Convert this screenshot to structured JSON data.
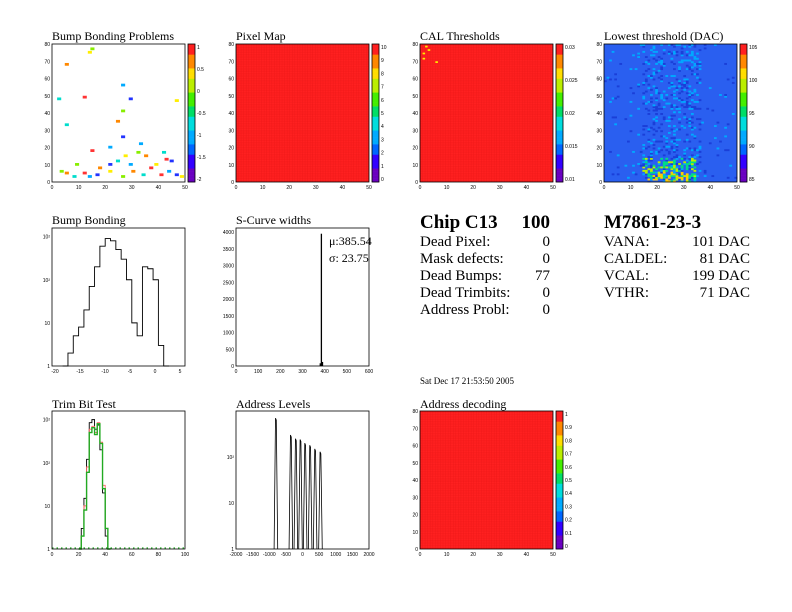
{
  "panels": {
    "bump_problems": {
      "title": "Bump Bonding Problems",
      "xticks": [
        "0",
        "10",
        "20",
        "30",
        "40",
        "50"
      ],
      "yticks": [
        "0",
        "10",
        "20",
        "30",
        "40",
        "50",
        "60",
        "70",
        "80"
      ],
      "zticks": [
        "1",
        "0.5",
        "0",
        "-0.5",
        "-1",
        "-1.5",
        "-2"
      ]
    },
    "pixel_map": {
      "title": "Pixel Map",
      "xticks": [
        "0",
        "10",
        "20",
        "30",
        "40",
        "50"
      ],
      "yticks": [
        "0",
        "10",
        "20",
        "30",
        "40",
        "50",
        "60",
        "70",
        "80"
      ],
      "zticks": [
        "10",
        "9",
        "8",
        "7",
        "6",
        "5",
        "4",
        "3",
        "2",
        "1",
        "0"
      ]
    },
    "cal_thresholds": {
      "title": "CAL Thresholds",
      "xticks": [
        "0",
        "10",
        "20",
        "30",
        "40",
        "50"
      ],
      "yticks": [
        "0",
        "10",
        "20",
        "30",
        "40",
        "50",
        "60",
        "70",
        "80"
      ],
      "zticks": [
        "0.03",
        "0.025",
        "0.02",
        "0.015",
        "0.01"
      ]
    },
    "lowest_threshold": {
      "title": "Lowest threshold (DAC)",
      "xticks": [
        "0",
        "10",
        "20",
        "30",
        "40",
        "50"
      ],
      "yticks": [
        "0",
        "10",
        "20",
        "30",
        "40",
        "50",
        "60",
        "70",
        "80"
      ],
      "zticks": [
        "105",
        "100",
        "95",
        "90",
        "85"
      ]
    },
    "bump_bonding": {
      "title": "Bump Bonding",
      "xticks": [
        "-20",
        "-15",
        "-10",
        "-5",
        "0",
        "5"
      ],
      "yticks": [
        "10²",
        "10²",
        "10",
        "1"
      ]
    },
    "scurve_widths": {
      "title": "S-Curve widths",
      "xticks": [
        "0",
        "100",
        "200",
        "300",
        "400",
        "500",
        "600"
      ],
      "yticks": [
        "4000",
        "3500",
        "3000",
        "2500",
        "2000",
        "1500",
        "1000",
        "500",
        "0"
      ],
      "mu": "μ:385.54",
      "sigma": "σ: 23.75"
    },
    "trim_bit_test": {
      "title": "Trim Bit Test",
      "xticks": [
        "0",
        "20",
        "40",
        "60",
        "80",
        "100"
      ],
      "yticks": [
        "10²",
        "10²",
        "10",
        "1"
      ]
    },
    "address_levels": {
      "title": "Address Levels",
      "xticks": [
        "-2000",
        "-1500",
        "-1000",
        "-500",
        "0",
        "500",
        "1000",
        "1500",
        "2000"
      ],
      "yticks": [
        "10²",
        "10",
        "1"
      ]
    },
    "address_decoding": {
      "title": "Address decoding",
      "xticks": [
        "0",
        "10",
        "20",
        "30",
        "40",
        "50"
      ],
      "yticks": [
        "0",
        "10",
        "20",
        "30",
        "40",
        "50",
        "60",
        "70",
        "80"
      ],
      "zticks": [
        "1",
        "0.9",
        "0.8",
        "0.7",
        "0.6",
        "0.5",
        "0.4",
        "0.3",
        "0.2",
        "0.1",
        "0"
      ]
    }
  },
  "chip": {
    "name": "Chip C13",
    "score": "100",
    "rows": [
      {
        "label": "Dead Pixel:",
        "value": "0"
      },
      {
        "label": "Mask defects:",
        "value": "0"
      },
      {
        "label": "Dead Bumps:",
        "value": "77"
      },
      {
        "label": "Dead Trimbits:",
        "value": "0"
      },
      {
        "label": "Address Probl:",
        "value": "0"
      }
    ]
  },
  "module": {
    "name": "M7861-23-3",
    "rows": [
      {
        "label": "VANA:",
        "value": "101 DAC"
      },
      {
        "label": "CALDEL:",
        "value": "81 DAC"
      },
      {
        "label": "VCAL:",
        "value": "199 DAC"
      },
      {
        "label": "VTHR:",
        "value": "71 DAC"
      }
    ]
  },
  "timestamp": "Sat Dec 17 21:53:50 2005",
  "colors": {
    "red": "#ff2020",
    "blue": "#2255ee",
    "histo": "#000000",
    "green": "#22aa22",
    "pink": "#ff6060"
  },
  "chart_data": [
    {
      "type": "heatmap",
      "title": "Bump Bonding Problems",
      "xlim": [
        0,
        52
      ],
      "ylim": [
        0,
        80
      ],
      "zlim": [
        -2,
        1
      ],
      "points": [
        [
          14,
          75
        ],
        [
          15,
          77
        ],
        [
          5,
          68
        ],
        [
          2,
          48
        ],
        [
          12,
          49
        ],
        [
          27,
          56
        ],
        [
          30,
          48
        ],
        [
          48,
          47
        ],
        [
          27,
          41
        ],
        [
          25,
          35
        ],
        [
          5,
          33
        ],
        [
          15,
          18
        ],
        [
          22,
          20
        ],
        [
          27,
          26
        ],
        [
          28,
          15
        ],
        [
          33,
          17
        ],
        [
          36,
          15
        ],
        [
          43,
          17
        ],
        [
          44,
          13
        ],
        [
          30,
          10
        ],
        [
          22,
          10
        ],
        [
          40,
          10
        ],
        [
          3,
          6
        ],
        [
          5,
          5
        ],
        [
          8,
          3
        ],
        [
          12,
          5
        ],
        [
          14,
          3
        ],
        [
          17,
          4
        ],
        [
          22,
          6
        ],
        [
          27,
          3
        ],
        [
          31,
          6
        ],
        [
          35,
          4
        ],
        [
          38,
          8
        ],
        [
          45,
          6
        ],
        [
          48,
          4
        ],
        [
          50,
          3
        ],
        [
          9,
          10
        ],
        [
          18,
          8
        ],
        [
          25,
          12
        ],
        [
          42,
          4
        ],
        [
          34,
          22
        ],
        [
          46,
          12
        ]
      ]
    },
    {
      "type": "heatmap",
      "title": "Pixel Map",
      "xlim": [
        0,
        52
      ],
      "ylim": [
        0,
        80
      ],
      "zlim": [
        0,
        10
      ],
      "fill": 10
    },
    {
      "type": "heatmap",
      "title": "CAL Thresholds",
      "xlim": [
        0,
        52
      ],
      "ylim": [
        0,
        80
      ],
      "zlim": [
        0.008,
        0.034
      ],
      "fill": 0.033,
      "points": [
        [
          2,
          78
        ],
        [
          3,
          76
        ],
        [
          1,
          74
        ],
        [
          6,
          69
        ],
        [
          1,
          71
        ]
      ]
    },
    {
      "type": "heatmap",
      "title": "Lowest threshold (DAC)",
      "xlim": [
        0,
        52
      ],
      "ylim": [
        0,
        80
      ],
      "zlim": [
        85,
        108
      ]
    },
    {
      "type": "line",
      "title": "Bump Bonding",
      "xlim": [
        -20,
        5
      ],
      "log": true,
      "x": [
        -17.5,
        -16.5,
        -15.5,
        -14.5,
        -13.5,
        -12.5,
        -11.5,
        -10.5,
        -9.5,
        -8.5,
        -7.5,
        -6.5,
        -5.5,
        -4.5,
        -3.5,
        -2.5,
        -1.5,
        -0.5,
        0.5,
        1.5
      ],
      "values": [
        1,
        2,
        5,
        8,
        20,
        70,
        200,
        600,
        900,
        800,
        500,
        300,
        100,
        10,
        5,
        200,
        180,
        100,
        3,
        1
      ]
    },
    {
      "type": "bar",
      "title": "S-Curve widths",
      "xlim": [
        0,
        600
      ],
      "ylim": [
        0,
        4100
      ],
      "x": [
        380,
        385,
        390
      ],
      "values": [
        80,
        3930,
        120
      ]
    },
    {
      "type": "line",
      "title": "Trim Bit Test",
      "xlim": [
        0,
        100
      ],
      "log": true,
      "x": [
        21,
        23,
        25,
        27,
        29,
        31,
        33,
        35,
        37,
        39,
        41,
        43
      ],
      "series": [
        {
          "values": [
            1,
            3,
            15,
            120,
            850,
            1000,
            600,
            750,
            200,
            20,
            2,
            1
          ]
        },
        {
          "values": [
            1,
            2,
            10,
            80,
            600,
            700,
            500,
            850,
            300,
            30,
            3,
            1
          ]
        },
        {
          "values": [
            1,
            2,
            8,
            60,
            500,
            650,
            450,
            800,
            280,
            25,
            3,
            1
          ]
        }
      ]
    },
    {
      "type": "line",
      "title": "Address Levels",
      "xlim": [
        -2000,
        2000
      ],
      "log": true,
      "x": [
        -800,
        -350,
        -200,
        -60,
        80,
        230,
        380,
        540
      ],
      "values": [
        700,
        300,
        250,
        240,
        200,
        180,
        150,
        130
      ]
    },
    {
      "type": "heatmap",
      "title": "Address decoding",
      "xlim": [
        0,
        52
      ],
      "ylim": [
        0,
        80
      ],
      "zlim": [
        0,
        1
      ],
      "fill": 1
    }
  ]
}
